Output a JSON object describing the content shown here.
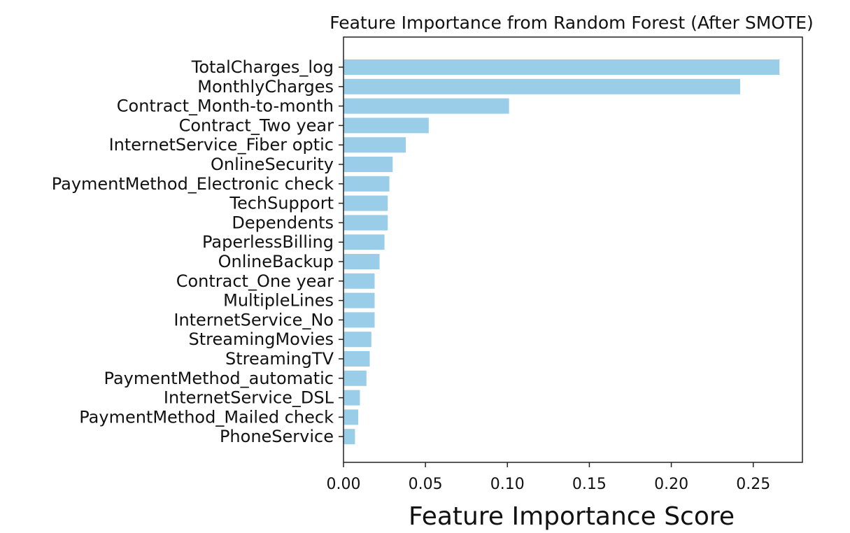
{
  "chart_data": {
    "type": "bar",
    "orientation": "horizontal",
    "title": "Feature Importance from Random Forest (After SMOTE)",
    "xlabel": "Feature Importance Score",
    "ylabel": "",
    "xlim": [
      0,
      0.28
    ],
    "x_ticks": [
      "0.00",
      "0.05",
      "0.10",
      "0.15",
      "0.20",
      "0.25"
    ],
    "grid": false,
    "bar_color": "#9ACDE8",
    "categories": [
      "TotalCharges_log",
      "MonthlyCharges",
      "Contract_Month-to-month",
      "Contract_Two year",
      "InternetService_Fiber optic",
      "OnlineSecurity",
      "PaymentMethod_Electronic check",
      "TechSupport",
      "Dependents",
      "PaperlessBilling",
      "OnlineBackup",
      "Contract_One year",
      "MultipleLines",
      "InternetService_No",
      "StreamingMovies",
      "StreamingTV",
      "PaymentMethod_automatic",
      "InternetService_DSL",
      "PaymentMethod_Mailed check",
      "PhoneService"
    ],
    "values": [
      0.266,
      0.242,
      0.101,
      0.052,
      0.038,
      0.03,
      0.028,
      0.027,
      0.027,
      0.025,
      0.022,
      0.019,
      0.019,
      0.019,
      0.017,
      0.016,
      0.014,
      0.01,
      0.009,
      0.007
    ]
  }
}
